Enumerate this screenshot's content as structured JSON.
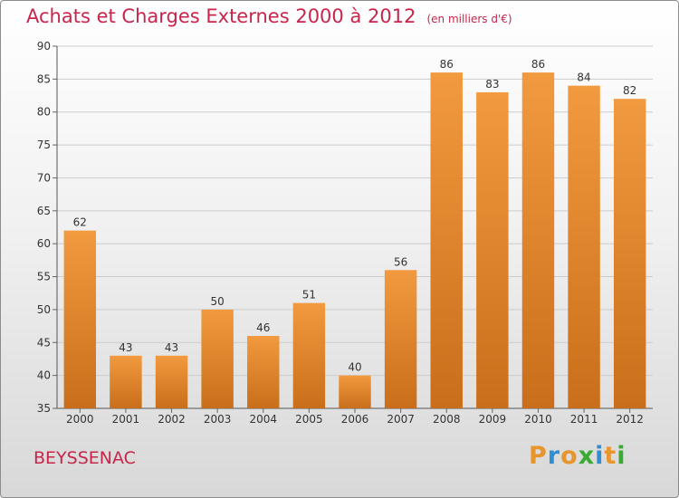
{
  "chart_data": {
    "type": "bar",
    "title": "Achats et Charges Externes 2000 à 2012",
    "subtitle": "(en milliers d'€)",
    "categories": [
      "2000",
      "2001",
      "2002",
      "2003",
      "2004",
      "2005",
      "2006",
      "2007",
      "2008",
      "2009",
      "2010",
      "2011",
      "2012"
    ],
    "values": [
      62,
      43,
      43,
      50,
      46,
      51,
      40,
      56,
      86,
      83,
      86,
      84,
      82
    ],
    "ylim": [
      35,
      90
    ],
    "yticks": [
      35,
      40,
      45,
      50,
      55,
      60,
      65,
      70,
      75,
      80,
      85,
      90
    ],
    "grid": true,
    "bar_color": "#f29a3f",
    "bar_color_dark": "#c96e1a"
  },
  "commune": "BEYSSENAC",
  "logo": {
    "letters": [
      "P",
      "r",
      "o",
      "x",
      "i",
      "t",
      "i"
    ],
    "colors": [
      "#e8952b",
      "#2f8fd1",
      "#e8952b",
      "#3aaa35",
      "#2f8fd1",
      "#e8952b",
      "#3aaa35"
    ]
  }
}
